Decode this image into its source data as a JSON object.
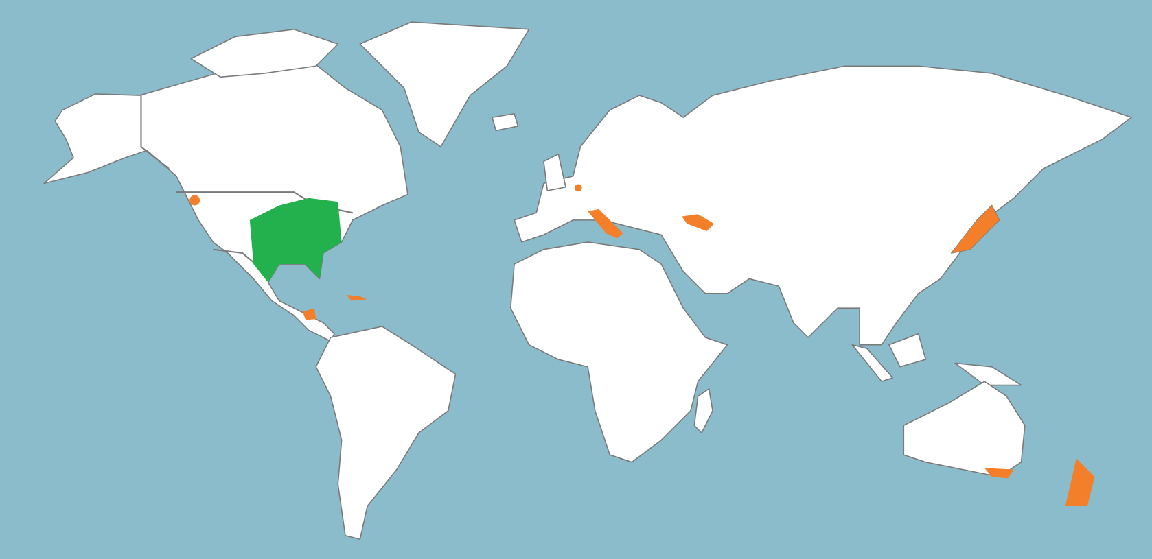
{
  "map": {
    "projection": "world",
    "colors": {
      "ocean": "#8bbccb",
      "land": "#ffffff",
      "borders": "#7a7a7a",
      "primary_range": "#22b14c",
      "secondary_range": "#f47f2a"
    }
  }
}
